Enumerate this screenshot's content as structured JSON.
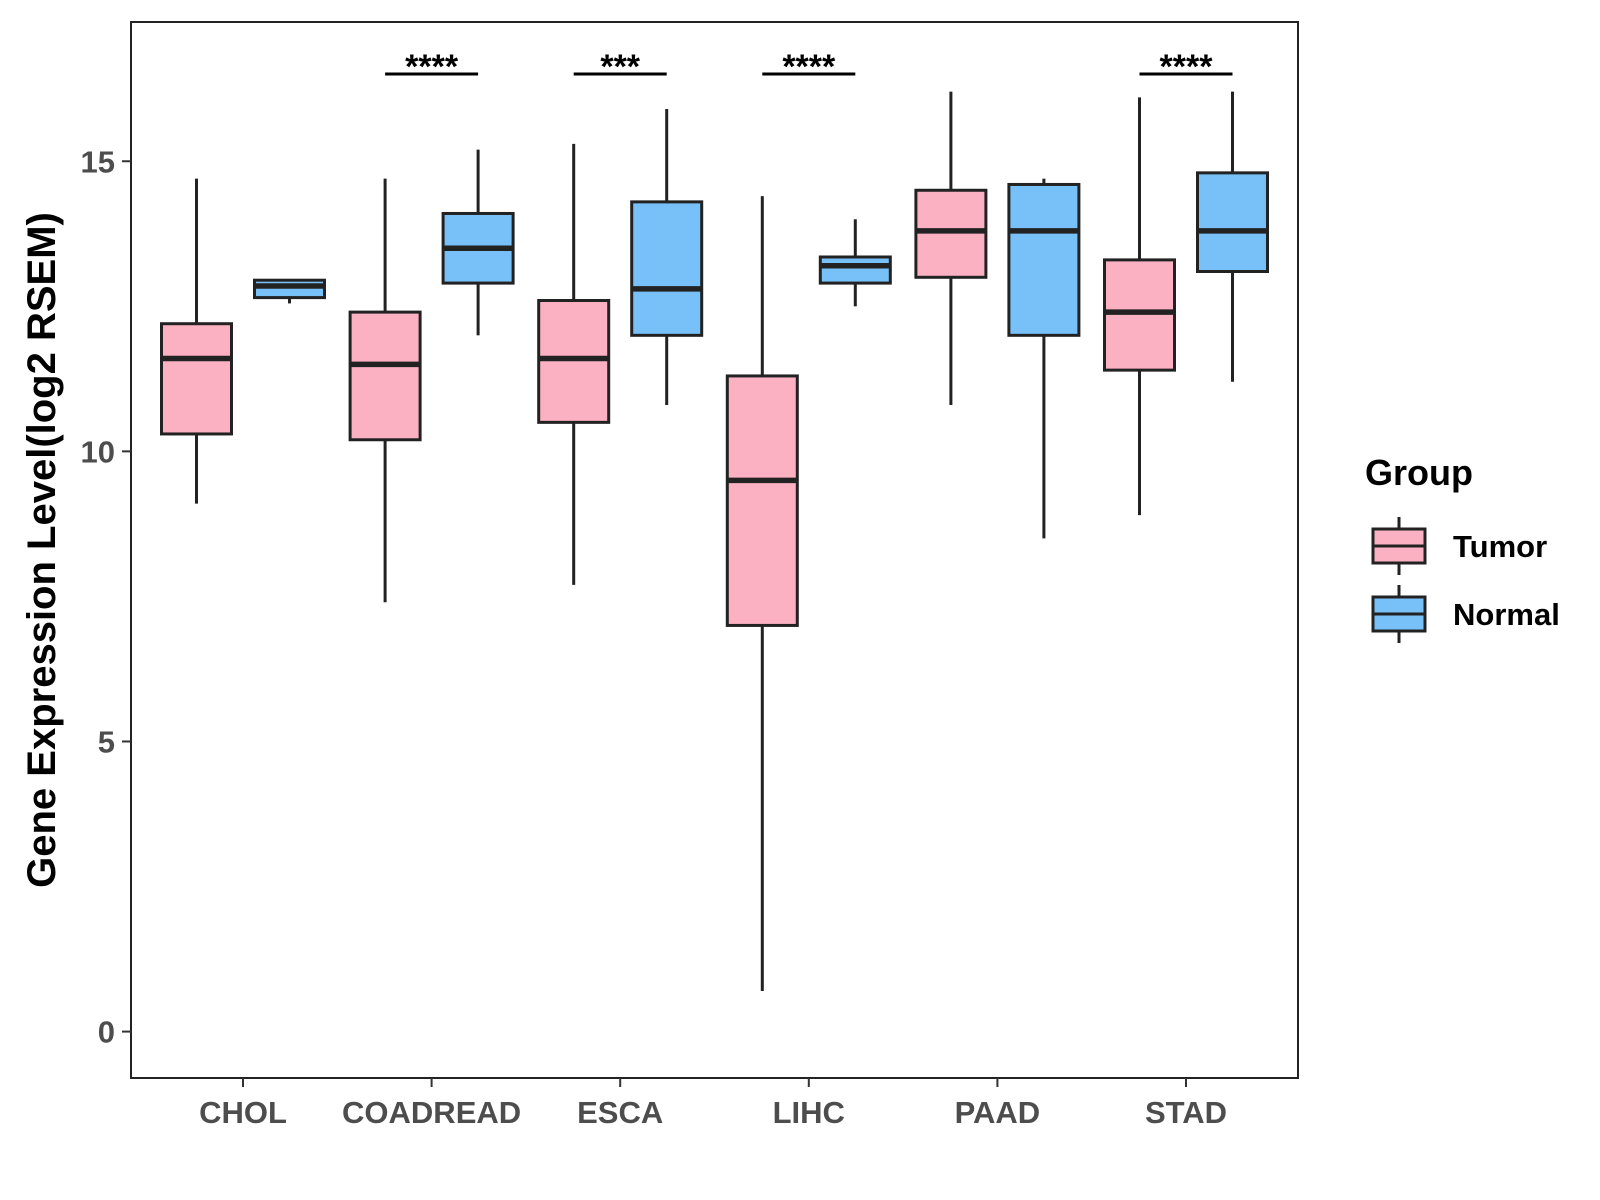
{
  "chart_data": {
    "type": "boxplot",
    "title": "",
    "xlabel": "",
    "ylabel": "Gene Expression Level(log2 RSEM)",
    "ylim": [
      -0.8,
      17.4
    ],
    "yticks": [
      0,
      5,
      10,
      15
    ],
    "grid": false,
    "categories": [
      "CHOL",
      "COADREAD",
      "ESCA",
      "LIHC",
      "PAAD",
      "STAD"
    ],
    "legend": {
      "title": "Group",
      "position": "right",
      "entries": [
        {
          "name": "Tumor",
          "color": "#FBB1C2"
        },
        {
          "name": "Normal",
          "color": "#77C1F8"
        }
      ]
    },
    "series": [
      {
        "name": "Tumor",
        "color": "#FBB1C2",
        "boxes": [
          {
            "min": 9.1,
            "q1": 10.3,
            "median": 11.6,
            "q3": 12.2,
            "max": 14.7
          },
          {
            "min": 7.4,
            "q1": 10.2,
            "median": 11.5,
            "q3": 12.4,
            "max": 14.7
          },
          {
            "min": 7.7,
            "q1": 10.5,
            "median": 11.6,
            "q3": 12.6,
            "max": 15.3
          },
          {
            "min": 0.7,
            "q1": 7.0,
            "median": 9.5,
            "q3": 11.3,
            "max": 14.4
          },
          {
            "min": 10.8,
            "q1": 13.0,
            "median": 13.8,
            "q3": 14.5,
            "max": 16.2
          },
          {
            "min": 8.9,
            "q1": 11.4,
            "median": 12.4,
            "q3": 13.3,
            "max": 16.1
          }
        ]
      },
      {
        "name": "Normal",
        "color": "#77C1F8",
        "boxes": [
          {
            "min": 12.55,
            "q1": 12.65,
            "median": 12.85,
            "q3": 12.95,
            "max": 12.95
          },
          {
            "min": 12.0,
            "q1": 12.9,
            "median": 13.5,
            "q3": 14.1,
            "max": 15.2
          },
          {
            "min": 10.8,
            "q1": 12.0,
            "median": 12.8,
            "q3": 14.3,
            "max": 15.9
          },
          {
            "min": 12.5,
            "q1": 12.9,
            "median": 13.2,
            "q3": 13.35,
            "max": 14.0
          },
          {
            "min": 8.5,
            "q1": 12.0,
            "median": 13.8,
            "q3": 14.6,
            "max": 14.7
          },
          {
            "min": 11.2,
            "q1": 13.1,
            "median": 13.8,
            "q3": 14.8,
            "max": 16.2
          }
        ]
      }
    ],
    "significance": [
      {
        "category": "COADREAD",
        "label": "****"
      },
      {
        "category": "ESCA",
        "label": "***"
      },
      {
        "category": "LIHC",
        "label": "****"
      },
      {
        "category": "STAD",
        "label": "****"
      }
    ]
  }
}
